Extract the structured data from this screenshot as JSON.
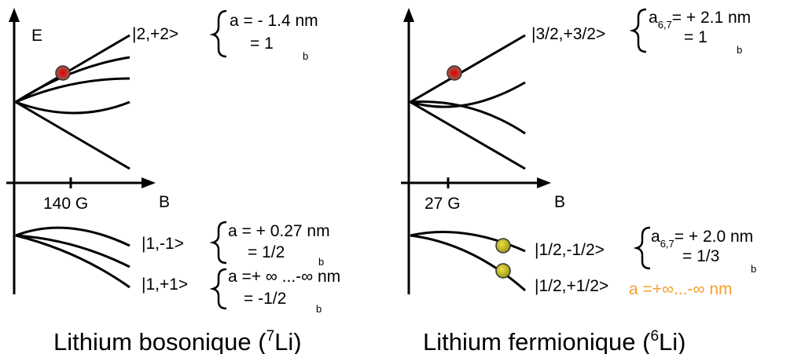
{
  "left": {
    "energy_label": "E",
    "field_label": "140 G",
    "b_label": "B",
    "upper": {
      "state": "|2,+2>",
      "a_line": "a = - 1.4 nm",
      "ratio": "= 1",
      "sub": "b"
    },
    "mid": {
      "state": "|1,-1>",
      "a_line": "a = + 0.27 nm",
      "ratio": "= 1/2",
      "sub": "b"
    },
    "low": {
      "state": "|1,+1>",
      "a_line": "a =+ ∞ ...-∞  nm",
      "ratio": "= -1/2",
      "sub": "b"
    },
    "caption": {
      "main": "Lithium bosonique (",
      "sup": "7",
      "end": "Li)"
    }
  },
  "right": {
    "field_label": "27 G",
    "b_label": "B",
    "upper": {
      "state": "|3/2,+3/2>",
      "a": "a",
      "a_sub": "6,7",
      "a_value": "= + 2.1 nm",
      "ratio": "= 1",
      "sub": "b"
    },
    "mid": {
      "state": "|1/2,-1/2>",
      "a": "a",
      "a_sub": "6,7",
      "a_value": "= + 2.0 nm",
      "ratio": "= 1/3",
      "sub": "b"
    },
    "low": {
      "state": "|1/2,+1/2>",
      "a_line": "a =+∞...-∞ nm"
    },
    "caption": {
      "main": "Lithium fermionique (",
      "sup": "6",
      "end": "Li)"
    }
  }
}
